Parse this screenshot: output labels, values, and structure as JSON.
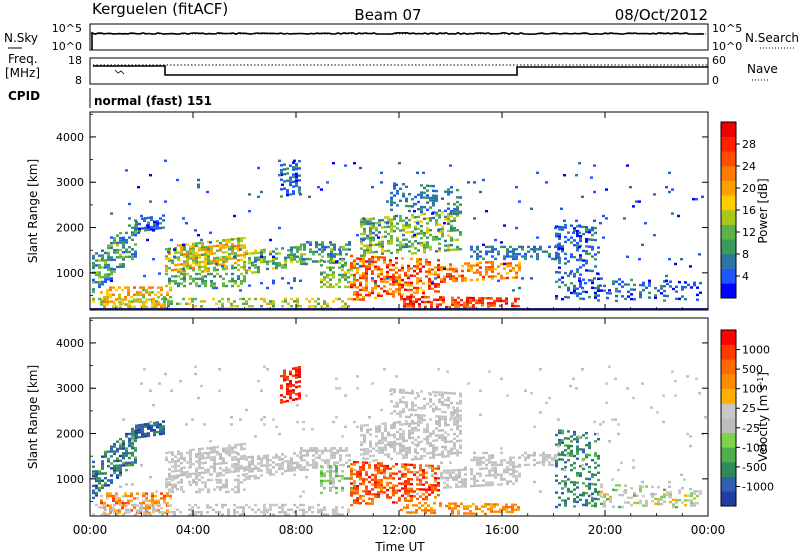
{
  "header": {
    "station": "Kerguelen (fitACF)",
    "beam": "Beam 07",
    "date": "08/Oct/2012"
  },
  "noise_panel": {
    "left_label": "N.Sky",
    "right_label": "N.Search",
    "y_ticks": [
      "10^5",
      "10^0"
    ],
    "right_ticks": [
      "10^5",
      "10^0"
    ]
  },
  "freq_panel": {
    "left_label_1": "Freq.",
    "left_label_2": "[MHz]",
    "y_ticks": [
      "18",
      "8"
    ],
    "right_label": "Nave",
    "right_ticks": [
      "60",
      "0"
    ]
  },
  "cpid": {
    "label": "CPID",
    "value": "normal (fast) 151"
  },
  "chart_data": [
    {
      "type": "heatmap",
      "name": "power",
      "ylabel": "Slant Range [km]",
      "y_ticks": [
        "4000",
        "3000",
        "2000",
        "1000"
      ],
      "ylim": [
        180,
        4550
      ],
      "colorbar_label": "Power [dB]",
      "colorbar_ticks": [
        "28",
        "24",
        "20",
        "16",
        "12",
        "8",
        "4"
      ],
      "colorbar_colors": [
        "#0000ff",
        "#1f55ff",
        "#2d75a0",
        "#3a9a5a",
        "#5ab44a",
        "#a8c81e",
        "#ffcc00",
        "#ffa000",
        "#ff7a00",
        "#ff4d00",
        "#ff2000",
        "#ee0000"
      ]
    },
    {
      "type": "heatmap",
      "name": "velocity",
      "ylabel": "Slant Range [km]",
      "y_ticks": [
        "4000",
        "3000",
        "2000",
        "1000"
      ],
      "ylim": [
        180,
        4550
      ],
      "colorbar_label": "Velocity [m s",
      "colorbar_label_sup": "-1",
      "colorbar_label_end": "]",
      "colorbar_ticks": [
        "1000",
        "500",
        "100",
        "25",
        "-25",
        "-100",
        "-500",
        "-1000"
      ],
      "colorbar_colors": [
        "#1e3fa0",
        "#2f5fb0",
        "#2e8b57",
        "#4daf4a",
        "#7dd34a",
        "#bebebe",
        "#c8c8c8",
        "#ffb000",
        "#ff8c00",
        "#ff6a00",
        "#ff3a00",
        "#ff0000"
      ]
    }
  ],
  "x_axis": {
    "ticks": [
      "00:00",
      "04:00",
      "08:00",
      "12:00",
      "16:00",
      "20:00",
      "00:00"
    ],
    "label": "Time UT"
  }
}
